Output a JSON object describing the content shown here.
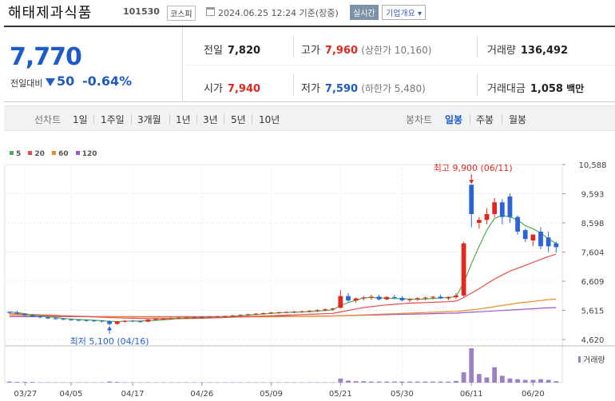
{
  "header": {
    "title": "해태제과식품",
    "code": "101530",
    "market": "코스피",
    "date": "2024.06.25 12:24 기준(장중)",
    "realtime": "실시간",
    "company": "기업개요 ▾"
  },
  "summary": {
    "price": "7,770",
    "prev_label": "전일대비",
    "change": "50",
    "rate": "-0.64%",
    "prev_close_label": "전일",
    "prev_close": "7,820",
    "high_label": "고가",
    "high": "7,960",
    "upper_limit": "(상한가 10,160)",
    "volume_label": "거래량",
    "volume": "136,492",
    "open_label": "시가",
    "open": "7,940",
    "low_label": "저가",
    "low": "7,590",
    "lower_limit": "(하한가 5,480)",
    "amount_label": "거래대금",
    "amount": "1,058",
    "amount_unit": "백만"
  },
  "tabs": {
    "line_chart": "선차트",
    "periods": [
      "1일",
      "1주일",
      "3개월",
      "1년",
      "3년",
      "5년",
      "10년"
    ],
    "candle_chart": "봉차트",
    "candle_types": [
      "일봉",
      "주봉",
      "월봉"
    ]
  },
  "chart_data": {
    "type": "candlestick",
    "legend": [
      {
        "name": "5",
        "color": "#4caf50"
      },
      {
        "name": "20",
        "color": "#e84b4b"
      },
      {
        "name": "60",
        "color": "#f08a24"
      },
      {
        "name": "120",
        "color": "#9b59d0"
      }
    ],
    "y_ticks": [
      "10,588",
      "9,593",
      "8,598",
      "7,604",
      "6,609",
      "5,615",
      "4,620"
    ],
    "ylim": [
      4620,
      10588
    ],
    "x_ticks": [
      "03/27",
      "04/05",
      "04/17",
      "04/26",
      "05/09",
      "05/21",
      "05/30",
      "06/11",
      "06/20"
    ],
    "annotations": {
      "high": "최고 9,900 (06/11)",
      "low": "최저 5,100 (04/16)"
    },
    "volume_label": "거래량",
    "up_color": "#e0281e",
    "down_color": "#2a64d8",
    "candles": [
      [
        5560,
        5580,
        5500,
        5530
      ],
      [
        5530,
        5600,
        5480,
        5500
      ],
      [
        5500,
        5520,
        5430,
        5450
      ],
      [
        5450,
        5480,
        5380,
        5400
      ],
      [
        5400,
        5430,
        5350,
        5380
      ],
      [
        5380,
        5400,
        5320,
        5340
      ],
      [
        5340,
        5370,
        5300,
        5320
      ],
      [
        5320,
        5350,
        5280,
        5300
      ],
      [
        5300,
        5330,
        5260,
        5290
      ],
      [
        5290,
        5310,
        5240,
        5280
      ],
      [
        5280,
        5300,
        5230,
        5270
      ],
      [
        5270,
        5290,
        5220,
        5260
      ],
      [
        5260,
        5280,
        5200,
        5240
      ],
      [
        5240,
        5270,
        5100,
        5150
      ],
      [
        5150,
        5250,
        5120,
        5230
      ],
      [
        5230,
        5280,
        5190,
        5260
      ],
      [
        5260,
        5290,
        5210,
        5240
      ],
      [
        5240,
        5260,
        5200,
        5230
      ],
      [
        5230,
        5320,
        5210,
        5300
      ],
      [
        5300,
        5340,
        5270,
        5320
      ],
      [
        5320,
        5350,
        5290,
        5330
      ],
      [
        5330,
        5360,
        5300,
        5340
      ],
      [
        5340,
        5380,
        5310,
        5360
      ],
      [
        5360,
        5390,
        5330,
        5370
      ],
      [
        5370,
        5400,
        5340,
        5380
      ],
      [
        5380,
        5410,
        5350,
        5390
      ],
      [
        5390,
        5420,
        5360,
        5400
      ],
      [
        5400,
        5430,
        5370,
        5410
      ],
      [
        5410,
        5440,
        5380,
        5420
      ],
      [
        5420,
        5460,
        5390,
        5440
      ],
      [
        5440,
        5480,
        5410,
        5460
      ],
      [
        5460,
        5500,
        5430,
        5480
      ],
      [
        5480,
        5520,
        5450,
        5500
      ],
      [
        5500,
        5540,
        5470,
        5520
      ],
      [
        5520,
        5560,
        5480,
        5540
      ],
      [
        5540,
        5570,
        5500,
        5550
      ],
      [
        5550,
        5580,
        5510,
        5560
      ],
      [
        5560,
        5590,
        5520,
        5570
      ],
      [
        5570,
        5600,
        5530,
        5580
      ],
      [
        5580,
        5620,
        5540,
        5600
      ],
      [
        5600,
        5650,
        5560,
        5620
      ],
      [
        5620,
        5680,
        5580,
        5650
      ],
      [
        5650,
        5700,
        5600,
        5680
      ],
      [
        5700,
        6300,
        5680,
        6100
      ],
      [
        6100,
        6200,
        5900,
        5950
      ],
      [
        5950,
        6050,
        5880,
        6020
      ],
      [
        6020,
        6100,
        5950,
        6050
      ],
      [
        6050,
        6150,
        5980,
        6080
      ],
      [
        6080,
        6150,
        5950,
        5990
      ],
      [
        5990,
        6100,
        5960,
        6070
      ],
      [
        6070,
        6140,
        6000,
        6040
      ],
      [
        6040,
        6100,
        5920,
        5960
      ],
      [
        5960,
        6030,
        5900,
        5990
      ],
      [
        5990,
        6060,
        5940,
        6030
      ],
      [
        6030,
        6080,
        5960,
        6050
      ],
      [
        6050,
        6100,
        5990,
        6080
      ],
      [
        6080,
        6150,
        6000,
        6020
      ],
      [
        6020,
        6100,
        5960,
        6060
      ],
      [
        6060,
        6200,
        6000,
        6120
      ],
      [
        6120,
        7950,
        6080,
        7900
      ],
      [
        9900,
        9900,
        8450,
        8900
      ],
      [
        8600,
        8800,
        8400,
        8700
      ],
      [
        8700,
        9100,
        8550,
        8900
      ],
      [
        8900,
        9450,
        8800,
        9300
      ],
      [
        9300,
        9400,
        8550,
        8800
      ],
      [
        9500,
        9600,
        8600,
        8800
      ],
      [
        8800,
        8850,
        8200,
        8300
      ],
      [
        8350,
        8400,
        7950,
        8050
      ],
      [
        8000,
        8200,
        7800,
        8200
      ],
      [
        8300,
        8450,
        7700,
        7800
      ],
      [
        8100,
        8300,
        7600,
        7800
      ],
      [
        7900,
        7960,
        7590,
        7770
      ]
    ],
    "ma5": [
      5560,
      5540,
      5500,
      5460,
      5430,
      5400,
      5370,
      5340,
      5320,
      5300,
      5290,
      5280,
      5260,
      5240,
      5230,
      5240,
      5250,
      5250,
      5260,
      5270,
      5290,
      5310,
      5330,
      5350,
      5360,
      5370,
      5380,
      5390,
      5400,
      5410,
      5430,
      5450,
      5470,
      5490,
      5510,
      5530,
      5540,
      5550,
      5560,
      5570,
      5590,
      5610,
      5630,
      5780,
      5880,
      5960,
      6040,
      6050,
      6040,
      6030,
      6020,
      6010,
      6000,
      5990,
      6000,
      6020,
      6040,
      6060,
      6080,
      6560,
      7200,
      7800,
      8350,
      8750,
      8850,
      8800,
      8700,
      8500,
      8400,
      8250,
      8050,
      7900
    ],
    "ma20": [
      5500,
      5490,
      5480,
      5470,
      5460,
      5450,
      5440,
      5430,
      5420,
      5410,
      5400,
      5390,
      5380,
      5370,
      5360,
      5350,
      5345,
      5340,
      5335,
      5330,
      5330,
      5330,
      5330,
      5335,
      5340,
      5345,
      5350,
      5360,
      5370,
      5380,
      5390,
      5400,
      5410,
      5420,
      5430,
      5440,
      5450,
      5460,
      5470,
      5480,
      5490,
      5500,
      5510,
      5560,
      5610,
      5660,
      5710,
      5740,
      5770,
      5800,
      5820,
      5840,
      5860,
      5870,
      5880,
      5890,
      5900,
      5910,
      5930,
      6050,
      6200,
      6350,
      6520,
      6680,
      6820,
      6950,
      7050,
      7150,
      7250,
      7350,
      7450,
      7530
    ],
    "ma60": [
      5450,
      5445,
      5440,
      5435,
      5430,
      5425,
      5420,
      5415,
      5410,
      5405,
      5400,
      5398,
      5396,
      5394,
      5392,
      5390,
      5388,
      5386,
      5385,
      5384,
      5383,
      5382,
      5381,
      5380,
      5380,
      5381,
      5382,
      5383,
      5384,
      5385,
      5386,
      5388,
      5390,
      5392,
      5395,
      5398,
      5401,
      5404,
      5407,
      5410,
      5413,
      5416,
      5420,
      5430,
      5440,
      5450,
      5460,
      5470,
      5480,
      5490,
      5500,
      5510,
      5520,
      5530,
      5540,
      5550,
      5560,
      5570,
      5580,
      5600,
      5630,
      5660,
      5700,
      5740,
      5780,
      5820,
      5860,
      5890,
      5920,
      5950,
      5980,
      6000
    ],
    "ma120": [
      5400,
      5400,
      5400,
      5400,
      5400,
      5400,
      5400,
      5400,
      5400,
      5400,
      5400,
      5400,
      5400,
      5400,
      5400,
      5400,
      5400,
      5400,
      5400,
      5400,
      5400,
      5400,
      5400,
      5400,
      5400,
      5400,
      5400,
      5400,
      5400,
      5400,
      5400,
      5402,
      5404,
      5406,
      5408,
      5410,
      5412,
      5414,
      5416,
      5418,
      5420,
      5422,
      5424,
      5430,
      5436,
      5442,
      5448,
      5454,
      5460,
      5466,
      5472,
      5478,
      5484,
      5490,
      5496,
      5502,
      5508,
      5514,
      5520,
      5535,
      5550,
      5565,
      5580,
      5595,
      5610,
      5625,
      5640,
      5655,
      5670,
      5685,
      5700,
      5710
    ],
    "volumes": [
      3,
      2,
      2,
      2,
      1,
      1,
      1,
      1,
      1,
      1,
      1,
      1,
      1,
      3,
      2,
      1,
      1,
      1,
      1,
      1,
      1,
      1,
      1,
      1,
      1,
      1,
      1,
      1,
      1,
      1,
      1,
      1,
      1,
      1,
      1,
      1,
      1,
      1,
      1,
      1,
      1,
      1,
      1,
      12,
      6,
      4,
      4,
      3,
      3,
      3,
      3,
      3,
      3,
      3,
      3,
      3,
      3,
      3,
      5,
      30,
      100,
      25,
      15,
      45,
      20,
      12,
      10,
      8,
      8,
      10,
      8,
      4
    ]
  }
}
